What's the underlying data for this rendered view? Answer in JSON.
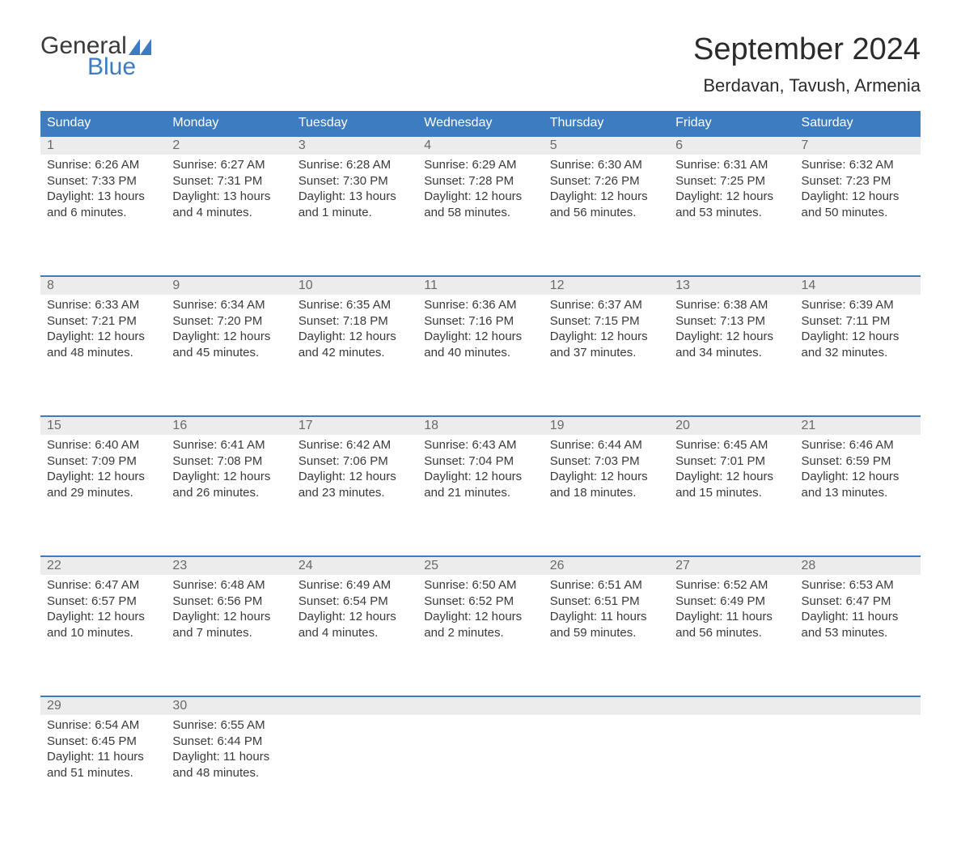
{
  "brand": {
    "word1": "General",
    "word2": "Blue",
    "mark_color": "#3d7cc0"
  },
  "title": "September 2024",
  "location": "Berdavan, Tavush, Armenia",
  "colors": {
    "header_bg": "#3d7cc0",
    "header_text": "#ffffff",
    "daynum_bg": "#ececec",
    "daynum_text": "#6a6a6a",
    "body_text": "#3a3a3a",
    "row_border": "#3d7cc0",
    "page_bg": "#ffffff"
  },
  "day_headers": [
    "Sunday",
    "Monday",
    "Tuesday",
    "Wednesday",
    "Thursday",
    "Friday",
    "Saturday"
  ],
  "weeks": [
    [
      {
        "n": "1",
        "sr": "6:26 AM",
        "ss": "7:33 PM",
        "dl": "13 hours and 6 minutes."
      },
      {
        "n": "2",
        "sr": "6:27 AM",
        "ss": "7:31 PM",
        "dl": "13 hours and 4 minutes."
      },
      {
        "n": "3",
        "sr": "6:28 AM",
        "ss": "7:30 PM",
        "dl": "13 hours and 1 minute."
      },
      {
        "n": "4",
        "sr": "6:29 AM",
        "ss": "7:28 PM",
        "dl": "12 hours and 58 minutes."
      },
      {
        "n": "5",
        "sr": "6:30 AM",
        "ss": "7:26 PM",
        "dl": "12 hours and 56 minutes."
      },
      {
        "n": "6",
        "sr": "6:31 AM",
        "ss": "7:25 PM",
        "dl": "12 hours and 53 minutes."
      },
      {
        "n": "7",
        "sr": "6:32 AM",
        "ss": "7:23 PM",
        "dl": "12 hours and 50 minutes."
      }
    ],
    [
      {
        "n": "8",
        "sr": "6:33 AM",
        "ss": "7:21 PM",
        "dl": "12 hours and 48 minutes."
      },
      {
        "n": "9",
        "sr": "6:34 AM",
        "ss": "7:20 PM",
        "dl": "12 hours and 45 minutes."
      },
      {
        "n": "10",
        "sr": "6:35 AM",
        "ss": "7:18 PM",
        "dl": "12 hours and 42 minutes."
      },
      {
        "n": "11",
        "sr": "6:36 AM",
        "ss": "7:16 PM",
        "dl": "12 hours and 40 minutes."
      },
      {
        "n": "12",
        "sr": "6:37 AM",
        "ss": "7:15 PM",
        "dl": "12 hours and 37 minutes."
      },
      {
        "n": "13",
        "sr": "6:38 AM",
        "ss": "7:13 PM",
        "dl": "12 hours and 34 minutes."
      },
      {
        "n": "14",
        "sr": "6:39 AM",
        "ss": "7:11 PM",
        "dl": "12 hours and 32 minutes."
      }
    ],
    [
      {
        "n": "15",
        "sr": "6:40 AM",
        "ss": "7:09 PM",
        "dl": "12 hours and 29 minutes."
      },
      {
        "n": "16",
        "sr": "6:41 AM",
        "ss": "7:08 PM",
        "dl": "12 hours and 26 minutes."
      },
      {
        "n": "17",
        "sr": "6:42 AM",
        "ss": "7:06 PM",
        "dl": "12 hours and 23 minutes."
      },
      {
        "n": "18",
        "sr": "6:43 AM",
        "ss": "7:04 PM",
        "dl": "12 hours and 21 minutes."
      },
      {
        "n": "19",
        "sr": "6:44 AM",
        "ss": "7:03 PM",
        "dl": "12 hours and 18 minutes."
      },
      {
        "n": "20",
        "sr": "6:45 AM",
        "ss": "7:01 PM",
        "dl": "12 hours and 15 minutes."
      },
      {
        "n": "21",
        "sr": "6:46 AM",
        "ss": "6:59 PM",
        "dl": "12 hours and 13 minutes."
      }
    ],
    [
      {
        "n": "22",
        "sr": "6:47 AM",
        "ss": "6:57 PM",
        "dl": "12 hours and 10 minutes."
      },
      {
        "n": "23",
        "sr": "6:48 AM",
        "ss": "6:56 PM",
        "dl": "12 hours and 7 minutes."
      },
      {
        "n": "24",
        "sr": "6:49 AM",
        "ss": "6:54 PM",
        "dl": "12 hours and 4 minutes."
      },
      {
        "n": "25",
        "sr": "6:50 AM",
        "ss": "6:52 PM",
        "dl": "12 hours and 2 minutes."
      },
      {
        "n": "26",
        "sr": "6:51 AM",
        "ss": "6:51 PM",
        "dl": "11 hours and 59 minutes."
      },
      {
        "n": "27",
        "sr": "6:52 AM",
        "ss": "6:49 PM",
        "dl": "11 hours and 56 minutes."
      },
      {
        "n": "28",
        "sr": "6:53 AM",
        "ss": "6:47 PM",
        "dl": "11 hours and 53 minutes."
      }
    ],
    [
      {
        "n": "29",
        "sr": "6:54 AM",
        "ss": "6:45 PM",
        "dl": "11 hours and 51 minutes."
      },
      {
        "n": "30",
        "sr": "6:55 AM",
        "ss": "6:44 PM",
        "dl": "11 hours and 48 minutes."
      },
      null,
      null,
      null,
      null,
      null
    ]
  ],
  "labels": {
    "sunrise": "Sunrise: ",
    "sunset": "Sunset: ",
    "daylight": "Daylight: "
  }
}
